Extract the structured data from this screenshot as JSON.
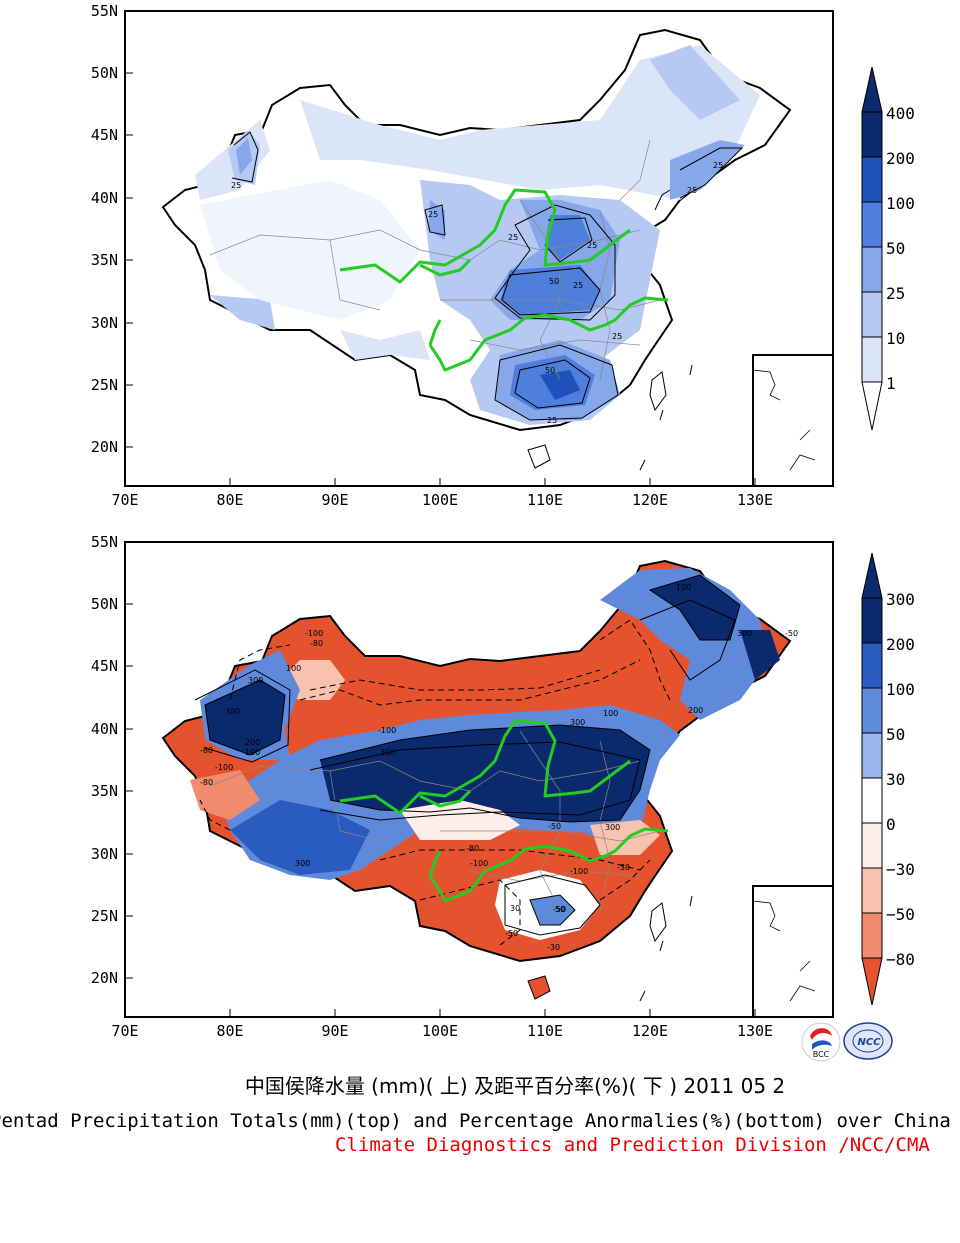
{
  "palette": {
    "precip": [
      "#ffffff",
      "#dbe5f8",
      "#b5c9f2",
      "#86a7ea",
      "#4d7fdb",
      "#1f51bb",
      "#0b2a6e"
    ],
    "anomaly": [
      "#e5532e",
      "#f08b6e",
      "#f8c3ae",
      "#fdeeea",
      "#ffffff",
      "#c9d8f4",
      "#9ab6ea",
      "#5f8adc",
      "#2a5bc0",
      "#0b2a6e"
    ],
    "river": "#22cc22",
    "credit": "#ee0000"
  },
  "top_map": {
    "lat_labels": [
      "55N",
      "50N",
      "45N",
      "40N",
      "35N",
      "30N",
      "25N",
      "20N"
    ],
    "lon_labels": [
      "70E",
      "80E",
      "90E",
      "100E",
      "110E",
      "120E",
      "130E"
    ],
    "contour_labels": [
      "25",
      "25",
      "25",
      "25",
      "50",
      "50",
      "25",
      "25",
      "25",
      "25",
      "25"
    ],
    "colorbar_labels": [
      "400",
      "200",
      "100",
      "50",
      "25",
      "10",
      "1"
    ]
  },
  "bottom_map": {
    "lat_labels": [
      "55N",
      "50N",
      "45N",
      "40N",
      "35N",
      "30N",
      "25N",
      "20N"
    ],
    "lon_labels": [
      "70E",
      "80E",
      "90E",
      "100E",
      "110E",
      "120E",
      "130E"
    ],
    "contour_labels": [
      "-100",
      "-80",
      "100",
      "300",
      "300",
      "200",
      "100",
      "-100",
      "-80",
      "300",
      "-100",
      "300",
      "300",
      "200",
      "100",
      "-50",
      "-30",
      "300",
      "100",
      "-100",
      "-50",
      "-80",
      "30",
      "-50",
      "50",
      "-50",
      "-30",
      "-100",
      "300",
      "-80"
    ],
    "colorbar_labels": [
      "300",
      "200",
      "100",
      "50",
      "30",
      "0",
      "−30",
      "−50",
      "−80"
    ]
  },
  "logos": [
    "BCC",
    "NCC"
  ],
  "title_zh": "中国侯降水量 (mm)( 上) 及距平百分率(%)( 下 ) 2011 05 2",
  "title_en": "Pentad Precipitation Totals(mm)(top) and Percentage Anormalies(%)(bottom) over China",
  "credit": "Climate Diagnostics and Prediction Division /NCC/CMA"
}
